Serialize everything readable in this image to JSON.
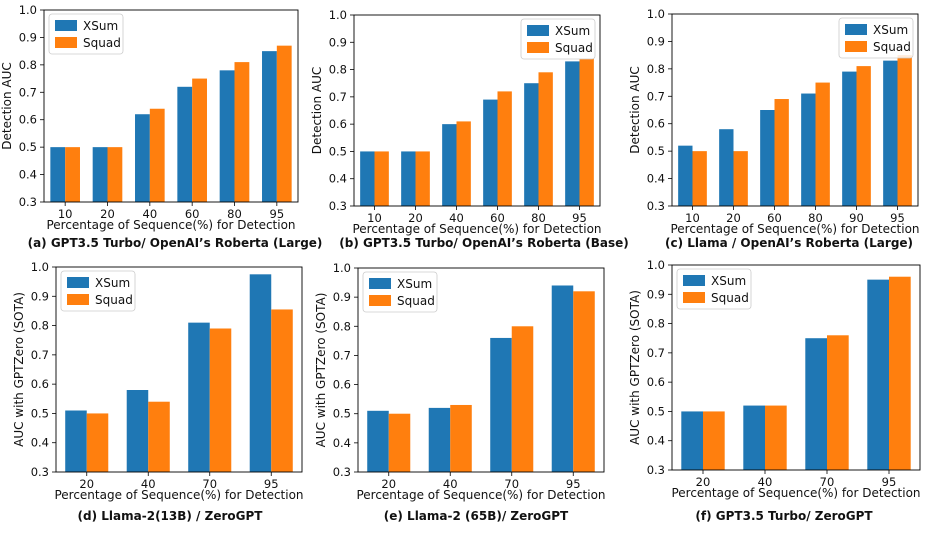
{
  "colors": {
    "xsum": "#1f77b4",
    "squad": "#ff7f0e"
  },
  "chart_data": [
    {
      "type": "bar",
      "caption": "(a) GPT3.5 Turbo/ OpenAI’s Roberta (Large)",
      "xlabel": "Percentage of Sequence(%) for Detection",
      "ylabel": "Detection AUC",
      "ylim": [
        0.3,
        1.0
      ],
      "yticks": [
        "0.3",
        "0.4",
        "0.5",
        "0.6",
        "0.7",
        "0.8",
        "0.9",
        "1.0"
      ],
      "categories": [
        "10",
        "20",
        "40",
        "60",
        "80",
        "95"
      ],
      "legend_position": "top-left",
      "series": [
        {
          "name": "XSum",
          "values": [
            0.5,
            0.5,
            0.62,
            0.72,
            0.78,
            0.85
          ]
        },
        {
          "name": "Squad",
          "values": [
            0.5,
            0.5,
            0.64,
            0.75,
            0.81,
            0.87
          ]
        }
      ]
    },
    {
      "type": "bar",
      "caption": "(b) GPT3.5 Turbo/ OpenAI’s Roberta (Base)",
      "xlabel": "Percentage of Sequence(%) for Detection",
      "ylabel": "Detection AUC",
      "ylim": [
        0.3,
        1.0
      ],
      "yticks": [
        "0.3",
        "0.4",
        "0.5",
        "0.6",
        "0.7",
        "0.8",
        "0.9",
        "1.0"
      ],
      "categories": [
        "10",
        "20",
        "40",
        "60",
        "80",
        "95"
      ],
      "legend_position": "top-right",
      "series": [
        {
          "name": "XSum",
          "values": [
            0.5,
            0.5,
            0.6,
            0.69,
            0.75,
            0.83
          ]
        },
        {
          "name": "Squad",
          "values": [
            0.5,
            0.5,
            0.61,
            0.72,
            0.79,
            0.84
          ]
        }
      ]
    },
    {
      "type": "bar",
      "caption": "(c) Llama / OpenAI’s Roberta (Large)",
      "xlabel": "Percentage of Sequence(%) for Detection",
      "ylabel": "Detection AUC",
      "ylim": [
        0.3,
        1.0
      ],
      "yticks": [
        "0.3",
        "0.4",
        "0.5",
        "0.6",
        "0.7",
        "0.8",
        "0.9",
        "1.0"
      ],
      "categories": [
        "10",
        "20",
        "60",
        "80",
        "90",
        "95"
      ],
      "legend_position": "top-right",
      "series": [
        {
          "name": "XSum",
          "values": [
            0.52,
            0.58,
            0.65,
            0.71,
            0.79,
            0.83
          ]
        },
        {
          "name": "Squad",
          "values": [
            0.5,
            0.5,
            0.69,
            0.75,
            0.81,
            0.85
          ]
        }
      ]
    },
    {
      "type": "bar",
      "caption": "(d) Llama-2(13B) / ZeroGPT",
      "xlabel": "Percentage of Sequence(%) for Detection",
      "ylabel": "AUC with GPTZero (SOTA)",
      "ylim": [
        0.3,
        1.0
      ],
      "yticks": [
        "0.3",
        "0.4",
        "0.5",
        "0.6",
        "0.7",
        "0.8",
        "0.9",
        "1.0"
      ],
      "categories": [
        "20",
        "40",
        "70",
        "95"
      ],
      "legend_position": "top-left",
      "series": [
        {
          "name": "XSum",
          "values": [
            0.51,
            0.58,
            0.81,
            0.975
          ]
        },
        {
          "name": "Squad",
          "values": [
            0.5,
            0.54,
            0.79,
            0.855
          ]
        }
      ]
    },
    {
      "type": "bar",
      "caption": "(e) Llama-2 (65B)/ ZeroGPT",
      "xlabel": "Percentage of Sequence(%) for Detection",
      "ylabel": "AUC with GPTZero (SOTA)",
      "ylim": [
        0.3,
        1.0
      ],
      "yticks": [
        "0.3",
        "0.4",
        "0.5",
        "0.6",
        "0.7",
        "0.8",
        "0.9",
        "1.0"
      ],
      "categories": [
        "20",
        "40",
        "70",
        "95"
      ],
      "legend_position": "top-left",
      "series": [
        {
          "name": "XSum",
          "values": [
            0.51,
            0.52,
            0.76,
            0.94
          ]
        },
        {
          "name": "Squad",
          "values": [
            0.5,
            0.53,
            0.8,
            0.92
          ]
        }
      ]
    },
    {
      "type": "bar",
      "caption": "(f) GPT3.5 Turbo/ ZeroGPT",
      "xlabel": "Percentage of Sequence(%) for Detection",
      "ylabel": "AUC with GPTZero (SOTA)",
      "ylim": [
        0.3,
        1.0
      ],
      "yticks": [
        "0.3",
        "0.4",
        "0.5",
        "0.6",
        "0.7",
        "0.8",
        "0.9",
        "1.0"
      ],
      "categories": [
        "20",
        "40",
        "70",
        "95"
      ],
      "legend_position": "top-left",
      "series": [
        {
          "name": "XSum",
          "values": [
            0.5,
            0.52,
            0.75,
            0.95
          ]
        },
        {
          "name": "Squad",
          "values": [
            0.5,
            0.52,
            0.76,
            0.96
          ]
        }
      ]
    }
  ]
}
